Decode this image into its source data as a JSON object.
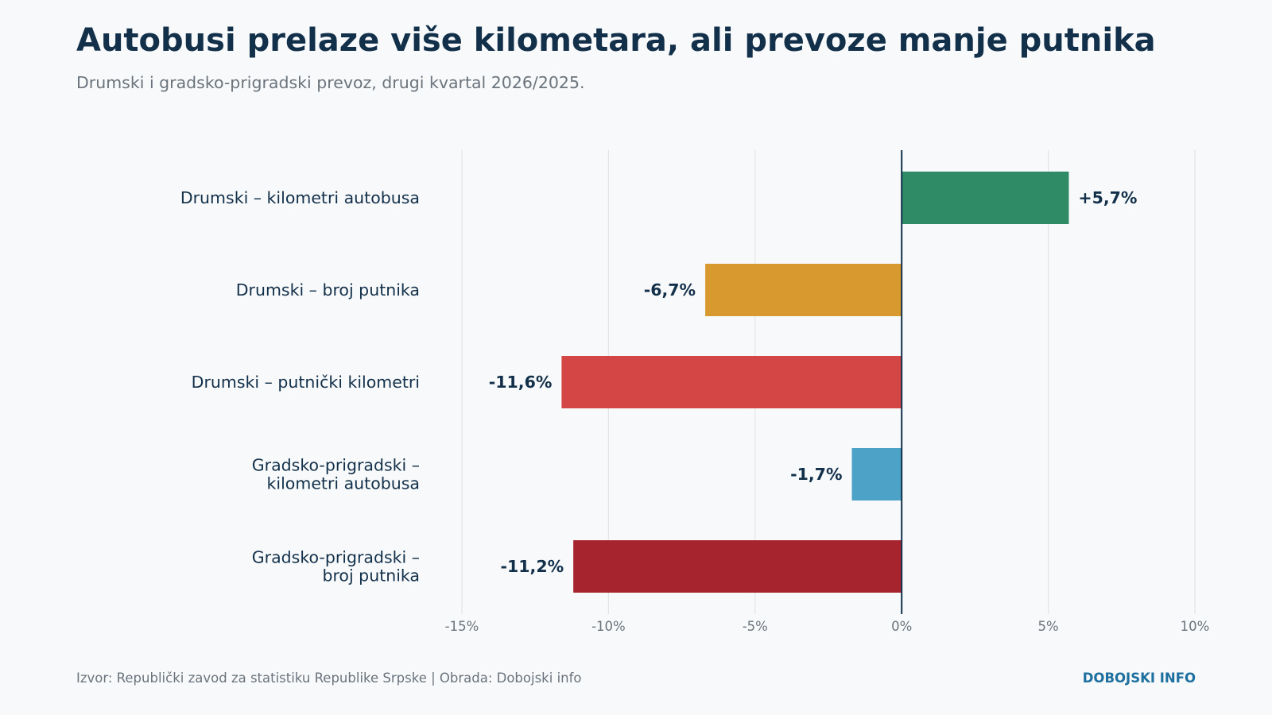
{
  "header": {
    "title": "Autobusi prelaze više kilometara, ali prevoze manje putnika",
    "subtitle": "Drumski i gradsko-prigradski prevoz, drugi kvartal 2026/2025."
  },
  "footer": {
    "source": "Izvor: Republički zavod za statistiku Republike Srpske | Obrada: Dobojski info",
    "brand": "DOBOJSKI INFO"
  },
  "colors": {
    "text_dark": "#13304a",
    "text_muted": "#6b747c",
    "grid": "#e2e5e8",
    "zero_line": "#13304a",
    "brand": "#1d6fa0"
  },
  "chart_data": {
    "type": "bar",
    "orientation": "horizontal",
    "categories": [
      [
        "Drumski – kilometri autobusa"
      ],
      [
        "Drumski – broj putnika"
      ],
      [
        "Drumski – putnički kilometri"
      ],
      [
        "Gradsko-prigradski –",
        "kilometri autobusa"
      ],
      [
        "Gradsko-prigradski –",
        "broj putnika"
      ]
    ],
    "values": [
      5.7,
      -6.7,
      -11.6,
      -1.7,
      -11.2
    ],
    "value_labels": [
      "+5,7%",
      "-6,7%",
      "-11,6%",
      "-1,7%",
      "-11,2%"
    ],
    "bar_colors": [
      "#2e8b66",
      "#d89a2e",
      "#d44545",
      "#4ca3c7",
      "#a5242d"
    ],
    "xlim": [
      -15,
      10
    ],
    "xticks": [
      -15,
      -10,
      -5,
      0,
      5,
      10
    ],
    "xtick_labels": [
      "-15%",
      "-10%",
      "-5%",
      "0%",
      "5%",
      "10%"
    ],
    "grid": true,
    "legend": "none"
  }
}
